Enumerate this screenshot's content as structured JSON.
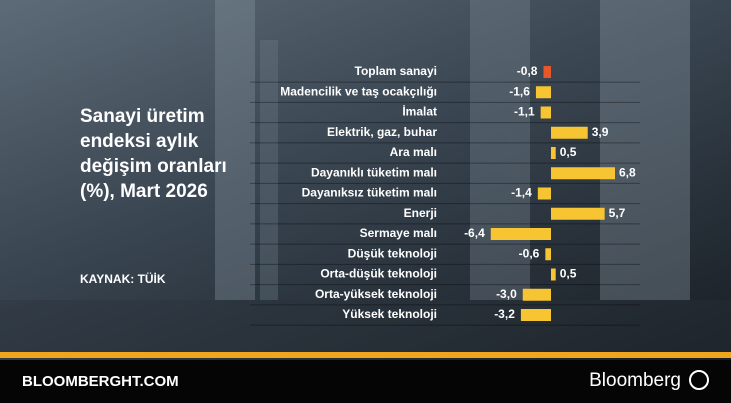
{
  "chart_data": {
    "type": "bar",
    "orientation": "horizontal",
    "title": "Sanayi üretim endeksi aylık değişim oranları (%), Mart 2026",
    "source": "KAYNAK: TÜİK",
    "categories": [
      "Toplam sanayi",
      "Madencilik ve taş ocakçılığı",
      "İmalat",
      "Elektrik, gaz, buhar",
      "Ara malı",
      "Dayanıklı tüketim malı",
      "Dayanıksız tüketim malı",
      "Enerji",
      "Sermaye malı",
      "Düşük teknoloji",
      "Orta-düşük teknoloji",
      "Orta-yüksek teknoloji",
      "Yüksek teknoloji"
    ],
    "values": [
      -0.8,
      -1.6,
      -1.1,
      3.9,
      0.5,
      6.8,
      -1.4,
      5.7,
      -6.4,
      -0.6,
      0.5,
      -3.0,
      -3.2
    ],
    "value_labels": [
      "-0,8",
      "-1,6",
      "-1,1",
      "3,9",
      "0,5",
      "6,8",
      "-1,4",
      "5,7",
      "-6,4",
      "-0,6",
      "0,5",
      "-3,0",
      "-3,2"
    ],
    "colors": [
      "#e8572a",
      "#f7c532",
      "#f7c532",
      "#f7c532",
      "#f7c532",
      "#f7c532",
      "#f7c532",
      "#f7c532",
      "#f7c532",
      "#f7c532",
      "#f7c532",
      "#f7c532",
      "#f7c532"
    ]
  },
  "footer": {
    "site": "BLOOMBERGHT.COM",
    "brand": "Bloomberg"
  }
}
